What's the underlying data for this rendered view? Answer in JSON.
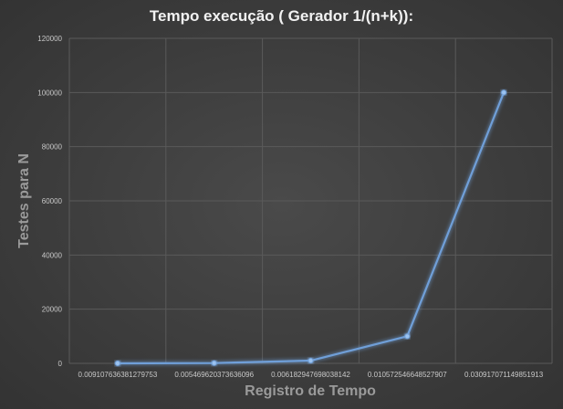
{
  "chart_data": {
    "type": "line",
    "title": "Tempo execução ( Gerador 1/(n+k)):",
    "xlabel": "Registro de Tempo",
    "ylabel": "Testes para N",
    "categories": [
      "0.0091076363812797​53",
      "0.005469620373636096",
      "0.006182947698038142",
      "0.010572546648527907",
      "0.030917071149851913"
    ],
    "series": [
      {
        "values": [
          10,
          100,
          1000,
          10000,
          100000
        ]
      }
    ],
    "y_ticks": [
      "0",
      "20000",
      "40000",
      "60000",
      "80000",
      "100000",
      "120000"
    ],
    "ylim": [
      0,
      120000
    ],
    "grid": true,
    "line_color": "#6f9fd8"
  }
}
